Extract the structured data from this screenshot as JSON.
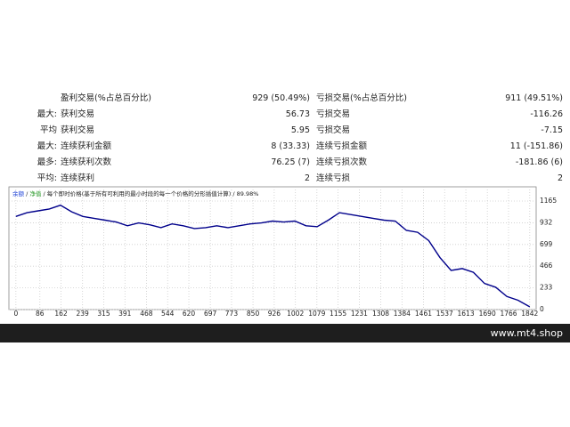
{
  "stats": {
    "rows": [
      {
        "win_label": "盈利交易(%占总百分比)",
        "win_value": "929 (50.49%)",
        "loss_label": "亏损交易(%占总百分比)",
        "loss_value": "911 (49.51%)"
      },
      {
        "prefix": "最大:",
        "win_label": "获利交易",
        "win_value": "56.73",
        "loss_label": "亏损交易",
        "loss_value": "-116.26"
      },
      {
        "prefix": "平均",
        "win_label": "获利交易",
        "win_value": "5.95",
        "loss_label": "亏损交易",
        "loss_value": "-7.15"
      },
      {
        "prefix": "最大:",
        "win_label": "连续获利金额",
        "win_value": "8 (33.33)",
        "loss_label": "连续亏损金额",
        "loss_value": "11 (-151.86)"
      },
      {
        "prefix": "最多:",
        "win_label": "连续获利次数",
        "win_value": "76.25 (7)",
        "loss_label": "连续亏损次数",
        "loss_value": "-181.86 (6)"
      },
      {
        "prefix": "平均:",
        "win_label": "连续获利",
        "win_value": "2",
        "loss_label": "连续亏损",
        "loss_value": "2"
      }
    ]
  },
  "chart_data": {
    "type": "line",
    "header": {
      "balance": "余额",
      "equity": "净值",
      "separator": "/",
      "model": "每个即时价格(基于所有可利用的最小时段的每一个价格的分形插值计算)",
      "quality": "89.98%"
    },
    "x": [
      0,
      40,
      80,
      120,
      160,
      200,
      240,
      280,
      320,
      360,
      400,
      440,
      480,
      520,
      560,
      600,
      640,
      680,
      720,
      760,
      800,
      840,
      880,
      920,
      960,
      1000,
      1040,
      1080,
      1120,
      1160,
      1200,
      1240,
      1280,
      1320,
      1360,
      1400,
      1440,
      1480,
      1520,
      1560,
      1600,
      1640,
      1680,
      1720,
      1760,
      1800,
      1842
    ],
    "series": [
      {
        "name": "余额",
        "color": "#00008b",
        "values": [
          1000,
          1040,
          1060,
          1080,
          1120,
          1050,
          1000,
          980,
          960,
          940,
          900,
          930,
          910,
          880,
          920,
          900,
          870,
          880,
          900,
          880,
          900,
          920,
          930,
          950,
          940,
          950,
          900,
          890,
          960,
          1040,
          1020,
          1000,
          980,
          960,
          950,
          850,
          830,
          740,
          560,
          420,
          440,
          400,
          280,
          240,
          140,
          100,
          30
        ]
      }
    ],
    "xlim": [
      -25,
      1865
    ],
    "xticks": [
      0,
      86,
      162,
      239,
      315,
      391,
      468,
      544,
      620,
      697,
      773,
      850,
      926,
      1002,
      1079,
      1155,
      1231,
      1308,
      1384,
      1461,
      1537,
      1613,
      1690,
      1766,
      1842
    ],
    "ylim": [
      0,
      1318
    ],
    "yticks": [
      0,
      233,
      466,
      699,
      932,
      1165
    ],
    "grid": true
  },
  "footer": "www.mt4.shop"
}
